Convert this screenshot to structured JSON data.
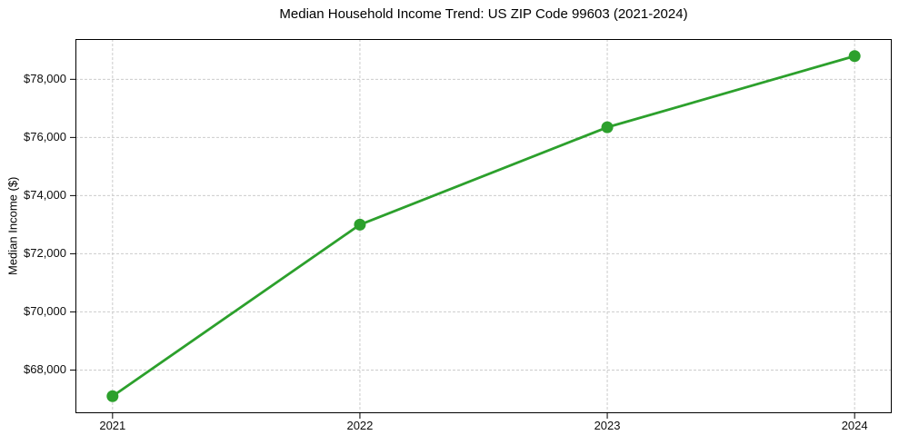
{
  "chart_data": {
    "type": "line",
    "title": "Median Household Income Trend: US ZIP Code 99603 (2021-2024)",
    "xlabel": "",
    "ylabel": "Median Income ($)",
    "categories": [
      "2021",
      "2022",
      "2023",
      "2024"
    ],
    "values": [
      67100,
      73000,
      76350,
      78800
    ],
    "ylim": [
      66515,
      79385
    ],
    "yticks": [
      {
        "value": 68000,
        "label": "$68,000"
      },
      {
        "value": 70000,
        "label": "$70,000"
      },
      {
        "value": 72000,
        "label": "$72,000"
      },
      {
        "value": 74000,
        "label": "$74,000"
      },
      {
        "value": 76000,
        "label": "$76,000"
      },
      {
        "value": 78000,
        "label": "$78,000"
      }
    ],
    "grid": true,
    "grid_style": "dashed",
    "legend": "none",
    "marker": "circle",
    "colors": {
      "line": "#2ca02c",
      "marker": "#2ca02c",
      "grid": "#cccccc",
      "axis": "#000000",
      "text": "#0d0d0d",
      "background": "#ffffff"
    }
  }
}
